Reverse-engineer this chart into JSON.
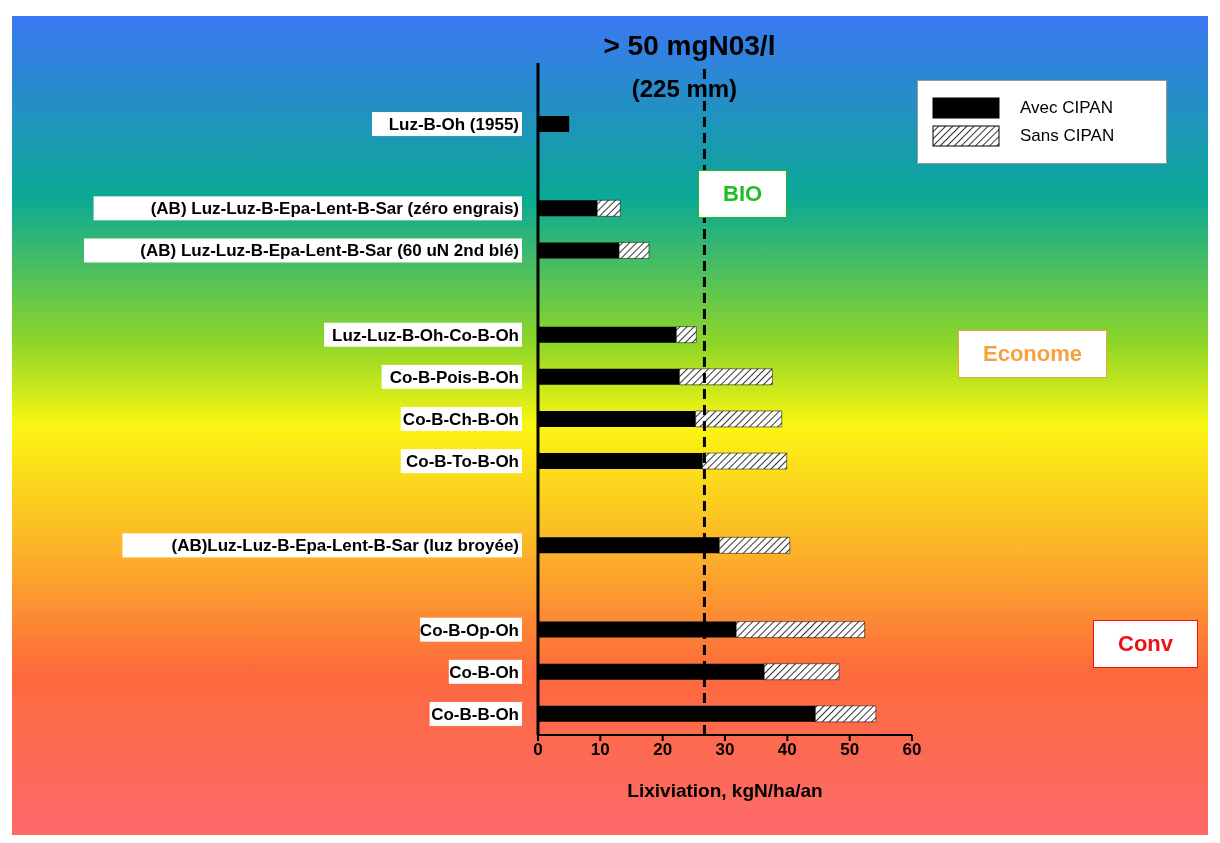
{
  "chart_data": {
    "type": "bar",
    "orientation": "horizontal",
    "stacked": true,
    "xlabel": "Lixiviation, kgN/ha/an",
    "categories": [
      "Luz-B-Oh (1955)",
      null,
      "(AB) Luz-Luz-B-Epa-Lent-B-Sar (zéro engrais)",
      "(AB) Luz-Luz-B-Epa-Lent-B-Sar (60 uN 2nd blé)",
      null,
      "Luz-Luz-B-Oh-Co-B-Oh",
      "Co-B-Pois-B-Oh",
      "Co-B-Ch-B-Oh",
      "Co-B-To-B-Oh",
      null,
      "(AB)Luz-Luz-B-Epa-Lent-B-Sar (luz broyée)",
      null,
      "Co-B-Op-Oh",
      "Co-B-Oh",
      "Co-B-B-Oh"
    ],
    "series": [
      {
        "name": "Avec CIPAN",
        "color": "#000000",
        "values": [
          5,
          null,
          9.5,
          13.0,
          null,
          22.2,
          22.7,
          25.3,
          26.4,
          null,
          29.1,
          null,
          31.8,
          36.3,
          44.5
        ]
      },
      {
        "name": "Sans CIPAN",
        "color": "#000000",
        "values": [
          null,
          null,
          3.7,
          4.8,
          null,
          3.2,
          14.9,
          13.8,
          13.5,
          null,
          11.3,
          null,
          20.6,
          12.0,
          9.7
        ]
      }
    ],
    "xlim": [
      0,
      60
    ],
    "xticks": [
      0,
      10,
      20,
      30,
      40,
      50,
      60
    ],
    "legend": "top right",
    "ref_lines": [
      {
        "axis": "x",
        "value": 26.7,
        "label": "> 50 mgN03/l\n(225 mm)",
        "line_style": "dashed",
        "color": "#000000"
      }
    ],
    "annotations": [
      "BIO",
      "Econome",
      "Conv"
    ]
  }
}
